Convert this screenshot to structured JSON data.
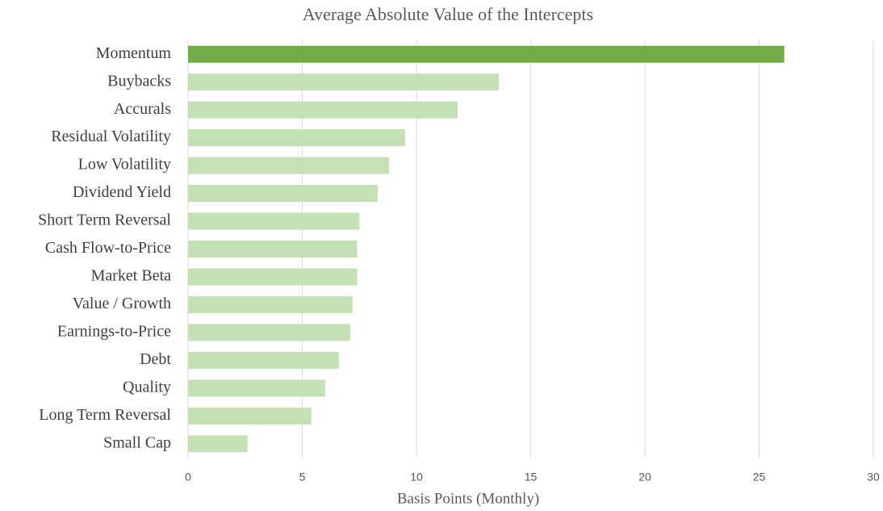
{
  "chart_data": {
    "type": "barh",
    "title": "Average Absolute Value of the Intercepts",
    "xlabel": "Basis Points (Monthly)",
    "categories": [
      "Momentum",
      "Buybacks",
      "Accurals",
      "Residual Volatility",
      "Low Volatility",
      "Dividend Yield",
      "Short Term Reversal",
      "Cash Flow-to-Price",
      "Market Beta",
      "Value / Growth",
      "Earnings-to-Price",
      "Debt",
      "Quality",
      "Long Term Reversal",
      "Small Cap"
    ],
    "values": [
      26.1,
      13.6,
      11.8,
      9.5,
      8.8,
      8.3,
      7.5,
      7.4,
      7.4,
      7.2,
      7.1,
      6.6,
      6.0,
      5.4,
      2.6
    ],
    "colors": [
      "#70ad47",
      "#c5e0b4",
      "#c5e0b4",
      "#c5e0b4",
      "#c5e0b4",
      "#c5e0b4",
      "#c5e0b4",
      "#c5e0b4",
      "#c5e0b4",
      "#c5e0b4",
      "#c5e0b4",
      "#c5e0b4",
      "#c5e0b4",
      "#c5e0b4",
      "#c5e0b4"
    ],
    "xlim": [
      0,
      30
    ],
    "xticks": [
      0,
      5,
      10,
      15,
      20,
      25,
      30
    ],
    "grid": true
  }
}
